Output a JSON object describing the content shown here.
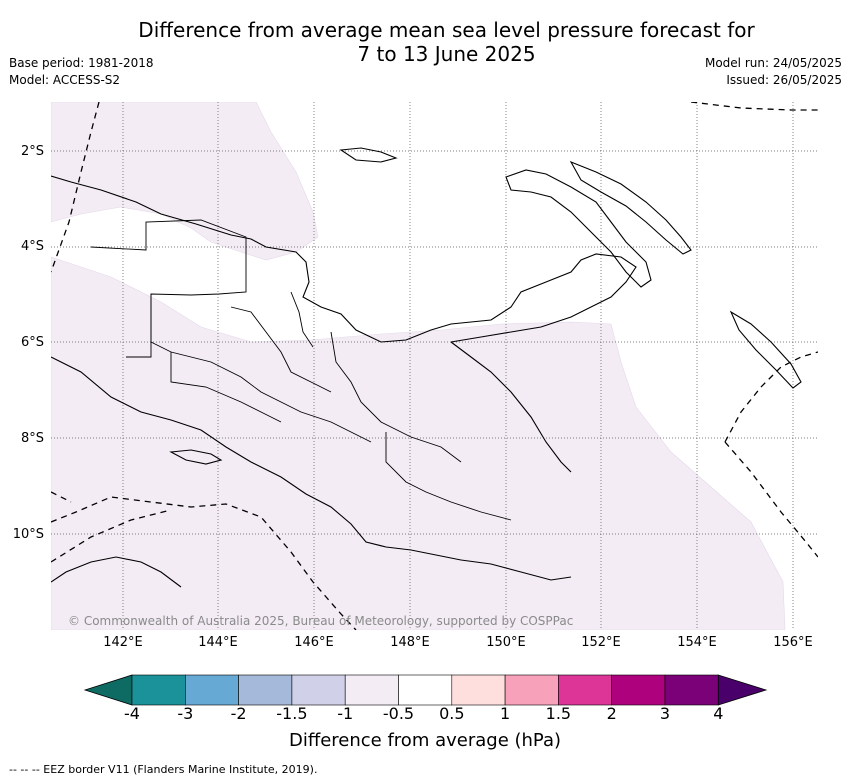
{
  "title_line1": "Difference from average mean sea level pressure forecast for",
  "title_line2": "7 to 13 June 2025",
  "base_period": "Base period: 1981-2018",
  "model": "Model: ACCESS-S2",
  "model_run": "Model run: 24/05/2025",
  "issued": "Issued: 26/05/2025",
  "lat_labels": [
    "2°S",
    "4°S",
    "6°S",
    "8°S",
    "10°S"
  ],
  "lon_labels": [
    "142°E",
    "144°E",
    "146°E",
    "148°E",
    "150°E",
    "152°E",
    "154°E",
    "156°E"
  ],
  "copyright": "© Commonwealth of Australia 2025, Bureau of Meteorology, supported by COSPPac",
  "colorbar": {
    "label": "Difference from average (hPa)",
    "ticks": [
      "-4",
      "-3",
      "-2",
      "-1.5",
      "-1",
      "-0.5",
      "0.5",
      "1",
      "1.5",
      "2",
      "3",
      "4"
    ],
    "colors": [
      "#0e6b64",
      "#1b9199",
      "#66a9d4",
      "#a5b9da",
      "#d0d0e8",
      "#f3ecf5",
      "#ffffff",
      "#ffdede",
      "#f8a1ba",
      "#dd3497",
      "#ae017e",
      "#7a0177",
      "#49006a"
    ]
  },
  "legend_note": "--  --  -- EEZ border V11 (Flanders Marine Institute, 2019).",
  "map_data": {
    "region": "Papua New Guinea",
    "lon_range": [
      140.6,
      156.5
    ],
    "lat_range": [
      -12.0,
      -1.0
    ],
    "dominant_category": "-1 to -0.5",
    "dominant_color": "#f3ecf5",
    "near_average_category": "-0.5 to 0.5",
    "near_average_color": "#ffffff",
    "gridlines": true
  }
}
